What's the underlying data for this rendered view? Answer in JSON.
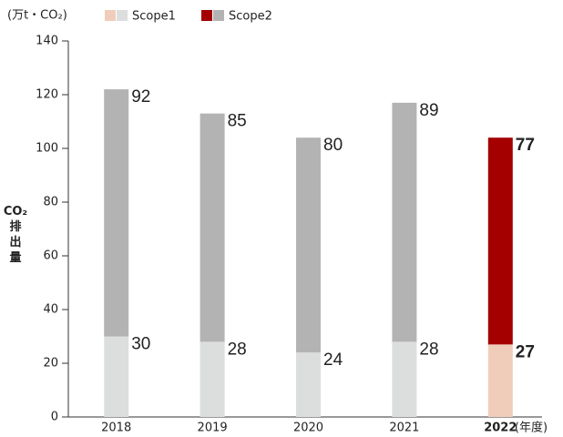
{
  "chart_data": {
    "type": "stacked_bar",
    "unit_label": "(万t・CO₂)",
    "y_label": "CO₂排出量",
    "x_label": "(年度)",
    "categories": [
      "2018",
      "2019",
      "2020",
      "2021",
      "2022"
    ],
    "series": [
      {
        "name": "Scope1",
        "values": [
          30,
          28,
          24,
          28,
          27
        ],
        "colors": [
          "#dcdddd",
          "#dcdddd",
          "#dcdddd",
          "#dcdddd",
          "#f0cdbb"
        ]
      },
      {
        "name": "Scope2",
        "values": [
          92,
          85,
          80,
          89,
          77
        ],
        "colors": [
          "#b3b3b3",
          "#b3b3b3",
          "#b3b3b3",
          "#b3b3b3",
          "#a50000"
        ]
      }
    ],
    "ylim": [
      0,
      140
    ],
    "yticks": [
      0,
      20,
      40,
      60,
      80,
      100,
      120,
      140
    ],
    "grid": false
  }
}
